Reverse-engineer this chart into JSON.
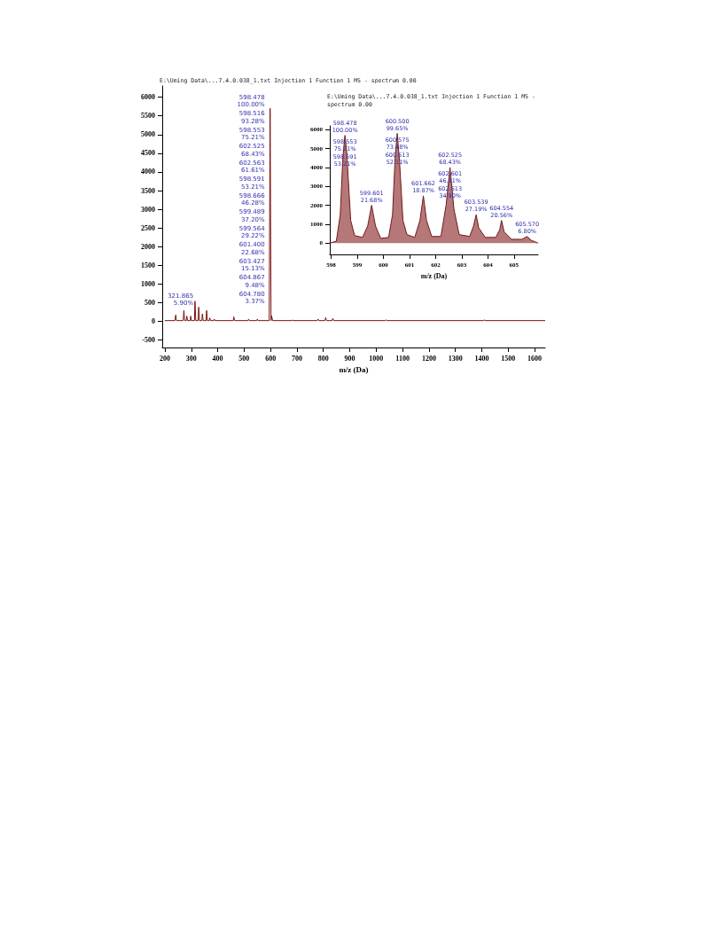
{
  "chart_data": [
    {
      "type": "line",
      "title": "E:\\Uming Data\\...7.4.0.038_1.txt Injection 1 Function 1 MS - spectrum 0.00",
      "xlabel": "m/z (Da)",
      "color": "#7a1010",
      "x": [
        200,
        238,
        241,
        244,
        269,
        272,
        275,
        281,
        283,
        286,
        296,
        298,
        300,
        312,
        314,
        317,
        326,
        328,
        331,
        340,
        342,
        345,
        356,
        358,
        361,
        368,
        370,
        373,
        385,
        387,
        390,
        459,
        461,
        464,
        515,
        517,
        520,
        548,
        550,
        553,
        595,
        598.5,
        602,
        604,
        608,
        681,
        683,
        686,
        777,
        780,
        783,
        806,
        809,
        812,
        833,
        836,
        839,
        1035,
        1037,
        1040,
        1407,
        1409,
        1412,
        1640
      ],
      "values": [
        20,
        20,
        170,
        20,
        20,
        290,
        20,
        20,
        140,
        20,
        20,
        140,
        20,
        20,
        540,
        20,
        20,
        380,
        20,
        20,
        200,
        20,
        20,
        290,
        20,
        20,
        90,
        20,
        20,
        60,
        20,
        20,
        120,
        20,
        20,
        60,
        20,
        20,
        60,
        20,
        20,
        5700,
        20,
        150,
        20,
        20,
        40,
        20,
        20,
        60,
        20,
        20,
        100,
        20,
        20,
        80,
        20,
        20,
        40,
        20,
        20,
        40,
        20,
        20
      ],
      "xlim": [
        190,
        1640
      ],
      "xticks": [
        200,
        300,
        400,
        500,
        600,
        700,
        800,
        900,
        1000,
        1100,
        1200,
        1300,
        1400,
        1500,
        1600
      ],
      "ylim": [
        -700,
        6300
      ],
      "yticks": [
        -500,
        0,
        500,
        1000,
        1500,
        2000,
        2500,
        3000,
        3500,
        4000,
        4500,
        5000,
        5500,
        6000
      ],
      "annotations": [
        {
          "text": "598.478\n100.00%",
          "x": 598.5,
          "y": 5700
        },
        {
          "text": "598.516\n93.28%",
          "x": 598.5,
          "y": 5700
        },
        {
          "text": "598.553\n75.21%",
          "x": 598.5,
          "y": 5700
        },
        "602.525\n68.43%",
        "602.563\n61.61%",
        "598.591\n53.21%",
        "598.666\n46.28%",
        "599.489\n37.20%",
        "599.564\n29.22%",
        "601.400\n22.68%",
        "603.427\n15.13%",
        "604.867\n9.48%",
        "604.780\n3.37%",
        {
          "text": "321.865\n5.90%",
          "x": 328,
          "y": 380
        }
      ]
    },
    {
      "type": "area",
      "title": "E:\\Uming Data\\...7.4.0.038_1.txt Injection 1 Function 1 MS - spectrum 0.00",
      "xlabel": "m/z (Da)",
      "color": "#9c4a4a",
      "x": [
        597.95,
        598.2,
        598.35,
        598.45,
        598.53,
        598.6,
        598.75,
        598.9,
        599.2,
        599.4,
        599.55,
        599.7,
        599.9,
        600.2,
        600.35,
        600.45,
        600.53,
        600.62,
        600.75,
        600.9,
        601.2,
        601.4,
        601.53,
        601.65,
        601.85,
        602.2,
        602.4,
        602.55,
        602.7,
        602.9,
        603.3,
        603.45,
        603.55,
        603.65,
        603.9,
        604.3,
        604.45,
        604.52,
        604.62,
        604.9,
        605.3,
        605.5,
        605.65,
        605.92
      ],
      "values": [
        0,
        100,
        1500,
        4500,
        5700,
        4800,
        1200,
        400,
        300,
        900,
        2000,
        900,
        250,
        300,
        1500,
        4500,
        5800,
        4300,
        1200,
        450,
        300,
        1200,
        2500,
        1200,
        350,
        350,
        2000,
        4000,
        1800,
        450,
        350,
        900,
        1500,
        800,
        300,
        300,
        700,
        1200,
        600,
        200,
        200,
        350,
        150,
        0
      ],
      "xlim": [
        597.95,
        605.92
      ],
      "xticks": [
        598,
        599,
        600,
        601,
        602,
        603,
        604,
        605
      ],
      "ylim": [
        -600,
        6200
      ],
      "yticks": [
        0,
        1000,
        2000,
        3000,
        4000,
        5000,
        6000
      ],
      "annotations": [
        {
          "text": "598.478\n100.00%",
          "x": 598.53,
          "y": 5700
        },
        {
          "text": "598.553\n75.21%",
          "x": 598.53,
          "y": 5700
        },
        "598.591\n53.21%",
        {
          "text": "599.601\n21.68%",
          "x": 599.55,
          "y": 2000
        },
        {
          "text": "600.500\n99.65%",
          "x": 600.53,
          "y": 5800
        },
        {
          "text": "600.575\n73.48%",
          "x": 600.53,
          "y": 5800
        },
        "600.613\n52.11%",
        {
          "text": "601.662\n18.87%",
          "x": 601.53,
          "y": 2500
        },
        {
          "text": "602.525\n68.43%",
          "x": 602.55,
          "y": 4000
        },
        {
          "text": "602.601\n46.81%",
          "x": 602.55,
          "y": 4000
        },
        "602.613\n34.90%",
        {
          "text": "603.539\n27.19%",
          "x": 603.55,
          "y": 1500
        },
        {
          "text": "604.554\n20.56%",
          "x": 604.52,
          "y": 1200
        },
        {
          "text": "605.570\n6.80%",
          "x": 605.5,
          "y": 350
        }
      ]
    }
  ]
}
